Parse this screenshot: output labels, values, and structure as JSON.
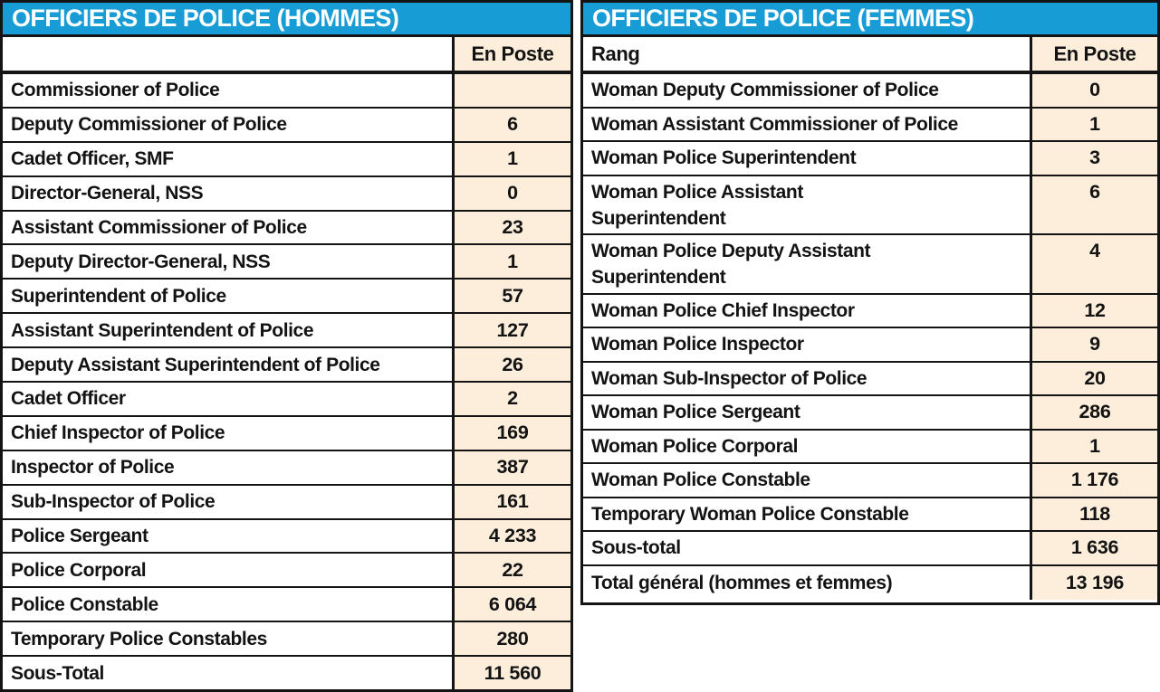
{
  "colors": {
    "title_bar_bg": "#189CD5",
    "title_text": "#ffffff",
    "value_column_bg": "#FCEEDB",
    "border": "#141414",
    "text": "#131313"
  },
  "left_table": {
    "title": "OFFICIERS DE POLICE (HOMMES)",
    "rank_header": "",
    "value_header": "En Poste",
    "rows": [
      {
        "rank": "Commissioner of Police",
        "value": ""
      },
      {
        "rank": "Deputy Commissioner of Police",
        "value": "6"
      },
      {
        "rank": "Cadet Officer, SMF",
        "value": "1"
      },
      {
        "rank": "Director-General, NSS",
        "value": "0"
      },
      {
        "rank": "Assistant Commissioner of Police",
        "value": "23"
      },
      {
        "rank": "Deputy Director-General, NSS",
        "value": "1"
      },
      {
        "rank": "Superintendent of Police",
        "value": "57"
      },
      {
        "rank": "Assistant Superintendent of Police",
        "value": "127"
      },
      {
        "rank": "Deputy Assistant Superintendent of Police",
        "value": "26"
      },
      {
        "rank": "Cadet Officer",
        "value": "2"
      },
      {
        "rank": "Chief Inspector of Police",
        "value": "169"
      },
      {
        "rank": "Inspector of Police",
        "value": "387"
      },
      {
        "rank": "Sub-Inspector of Police",
        "value": "161"
      },
      {
        "rank": "Police Sergeant",
        "value": "4 233"
      },
      {
        "rank": "Police Corporal",
        "value": "22"
      },
      {
        "rank": "Police Constable",
        "value": "6 064"
      },
      {
        "rank": "Temporary Police Constables",
        "value": "280"
      },
      {
        "rank": "Sous-Total",
        "value": "11 560"
      }
    ]
  },
  "right_table": {
    "title": "OFFICIERS DE POLICE (FEMMES)",
    "rank_header": "Rang",
    "value_header": "En Poste",
    "rows": [
      {
        "rank": "Woman Deputy Commissioner of Police",
        "value": "0"
      },
      {
        "rank": "Woman Assistant Commissioner of Police",
        "value": "1"
      },
      {
        "rank": "Woman Police Superintendent",
        "value": "3"
      },
      {
        "rank": "Woman Police Assistant\nSuperintendent",
        "value": "6"
      },
      {
        "rank": "Woman Police Deputy Assistant\nSuperintendent",
        "value": "4"
      },
      {
        "rank": "Woman Police Chief Inspector",
        "value": "12"
      },
      {
        "rank": "Woman Police Inspector",
        "value": "9"
      },
      {
        "rank": "Woman Sub-Inspector of Police",
        "value": "20"
      },
      {
        "rank": "Woman Police Sergeant",
        "value": "286"
      },
      {
        "rank": "Woman Police Corporal",
        "value": "1"
      },
      {
        "rank": "Woman Police Constable",
        "value": "1 176"
      },
      {
        "rank": "Temporary Woman Police Constable",
        "value": "118"
      },
      {
        "rank": "Sous-total",
        "value": "1 636"
      },
      {
        "rank": "Total général (hommes et femmes)",
        "value": "13 196"
      }
    ]
  }
}
